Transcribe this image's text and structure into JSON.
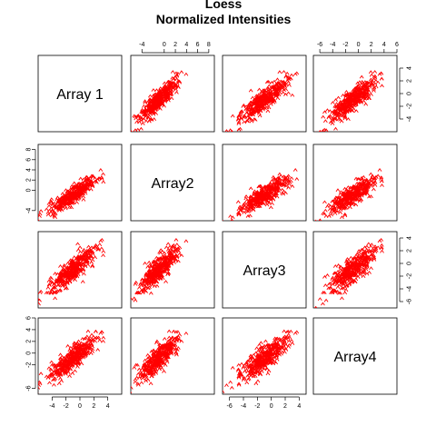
{
  "title": "Loess",
  "subtitle": "Normalized Intensities",
  "chart_data": {
    "type": "scatter",
    "layout": "pairs-matrix",
    "point_color": "#ff0000",
    "point_symbol": "^",
    "variables": [
      "Array 1",
      "Array2",
      "Array3",
      "Array4"
    ],
    "axis_ranges": [
      [
        -6,
        6
      ],
      [
        -6,
        9
      ],
      [
        -7,
        5
      ],
      [
        -7,
        6
      ]
    ],
    "axis_ticks": [
      [
        "-4",
        "-2",
        "0",
        "2",
        "4"
      ],
      [
        "-4",
        "0",
        "2",
        "4",
        "6",
        "8"
      ],
      [
        "-6",
        "-4",
        "-2",
        "0",
        "2",
        "4"
      ],
      [
        "-6",
        "-4",
        "-2",
        "0",
        "2",
        "4",
        "6"
      ]
    ],
    "top_axis_ticks": [
      [
        "-4",
        "0",
        "2",
        "4",
        "6",
        "8"
      ],
      [
        "-6",
        "-4",
        "-2",
        "0",
        "2",
        "4",
        "6"
      ]
    ],
    "bottom_axis_ticks": [
      [
        "-4",
        "-2",
        "0",
        "2",
        "4"
      ],
      [
        "-6",
        "-4",
        "-2",
        "0",
        "2",
        "4"
      ]
    ],
    "right_axis_ticks": [
      [
        "-4",
        "-2",
        "0",
        "2",
        "4"
      ],
      [
        "-6",
        "-4",
        "-2",
        "0",
        "2",
        "4"
      ]
    ],
    "left_axis_ticks": [
      [
        "-4",
        "0",
        "2",
        "4",
        "6",
        "8"
      ],
      [
        "-6",
        "-2",
        "0",
        "2",
        "4",
        "6"
      ]
    ],
    "cloud": {
      "center": [
        -1,
        -1
      ],
      "spread_along_diagonal": 1.6,
      "spread_across": 0.55,
      "n_points": 450
    }
  }
}
